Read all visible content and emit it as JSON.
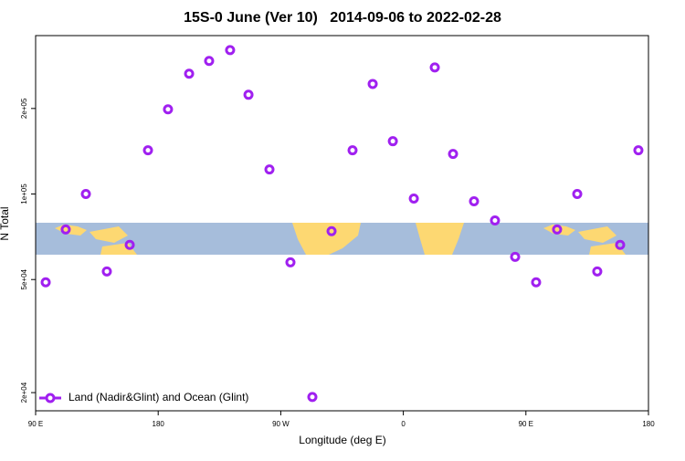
{
  "chart_data": {
    "type": "scatter",
    "title": "15S-0 June (Ver 10)   2014-09-06 to 2022-02-28",
    "xlabel": "Longitude (deg E)",
    "ylabel": "N Total",
    "xlim": [
      90,
      540
    ],
    "xticks": [
      {
        "value": 90,
        "label": "90 E"
      },
      180,
      {
        "value": 270,
        "label": "90 W"
      },
      {
        "value": 360,
        "label": "0"
      },
      {
        "value": 450,
        "label": "90 E"
      },
      {
        "value": 540,
        "label": "180"
      }
    ],
    "ylim": [
      17260,
      361000
    ],
    "ylog": true,
    "yticks": [
      {
        "value": 20000,
        "label": "2e+04"
      },
      {
        "value": 50000,
        "label": "5e+04"
      },
      {
        "value": 100000,
        "label": "1e+05"
      },
      {
        "value": 200000,
        "label": "2e+05"
      }
    ],
    "legend_position": "bottom-left",
    "series": [
      {
        "name": "Land (Nadir&Glint) and Ocean (Glint)",
        "color": "#a020f0",
        "x": [
          97.4,
          112.1,
          126.9,
          142.3,
          159.1,
          172.5,
          187.2,
          202.7,
          217.4,
          232.8,
          246.3,
          261.7,
          277.1,
          293.2,
          307.3,
          322.7,
          337.5,
          352.3,
          367.7,
          383.1,
          396.5,
          411.9,
          427.3,
          442.1,
          457.5,
          472.9,
          487.7,
          502.4,
          519.2,
          532.6
        ],
        "values": [
          48900,
          75000,
          100000,
          53400,
          66200,
          142500,
          198700,
          265000,
          294000,
          321000,
          223500,
          122000,
          57500,
          19300,
          74000,
          142500,
          244000,
          153400,
          96400,
          279000,
          138400,
          94300,
          80700,
          60100,
          48900,
          75000,
          100000,
          53400,
          66200,
          142500
        ]
      }
    ]
  }
}
